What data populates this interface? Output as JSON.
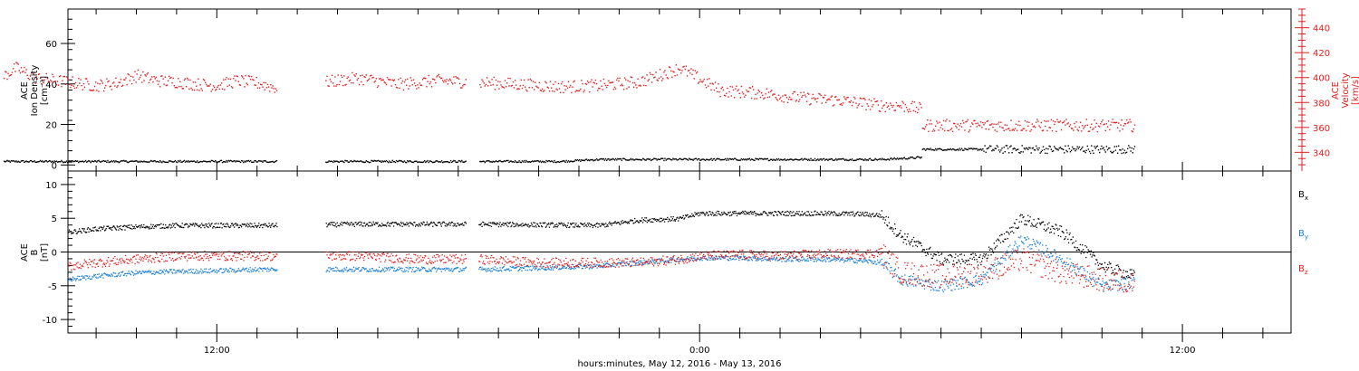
{
  "colors": {
    "black": "#000000",
    "red": "#e02020",
    "blue": "#1a7fd6"
  },
  "chart_data": [
    {
      "type": "scatter",
      "panel": "top",
      "ylabel_left": [
        "ACE",
        "Ion Density",
        "[cm⁻³]"
      ],
      "ylabel_right": [
        "ACE",
        "Velocity",
        "[km/s]"
      ],
      "ylim_left": [
        -3,
        77
      ],
      "ylim_right": [
        325,
        455
      ],
      "yticks_left": [
        0,
        20,
        40,
        60
      ],
      "yticks_right": [
        340,
        360,
        380,
        400,
        420,
        440
      ],
      "grid": false,
      "series": [
        {
          "color": "#000000",
          "axis": "left",
          "x": [
            6.7,
            7.5,
            8.5,
            9.5,
            10.5,
            11.5,
            12.5,
            13.5,
            15.5,
            16.5,
            17.5,
            19.5,
            20.5,
            21.5,
            22.5,
            23.5,
            0.5,
            1.5,
            2.5,
            3.5,
            4.5,
            5.5,
            6.5,
            7.5,
            8.5,
            9.5,
            9.8
          ],
          "y": [
            2,
            2,
            2,
            2,
            2,
            2,
            2,
            2,
            2,
            2,
            2,
            2,
            2,
            3,
            3,
            3,
            3,
            3,
            3,
            3,
            3,
            4,
            3,
            4,
            5,
            7,
            8
          ],
          "gaps": [
            [
              13.5,
              14.7
            ],
            [
              18.2,
              18.5
            ]
          ]
        },
        {
          "color": "#e02020",
          "axis": "right",
          "x": [
            6.7,
            7.0,
            7.5,
            8.0,
            8.5,
            9.0,
            9.5,
            10.0,
            10.5,
            11.0,
            11.5,
            12.0,
            12.5,
            13.0,
            13.5,
            15.5,
            16.5,
            17.5,
            19.5,
            20.5,
            21.5,
            22.5,
            23.5,
            0.5,
            1.5,
            2.5,
            3.5,
            4.5,
            5.0,
            5.5,
            6.5,
            7.5,
            8.5,
            9.5,
            9.8
          ],
          "y": [
            402,
            408,
            400,
            398,
            396,
            394,
            396,
            402,
            398,
            397,
            395,
            394,
            398,
            396,
            392,
            400,
            395,
            398,
            395,
            393,
            394,
            397,
            408,
            390,
            388,
            384,
            382,
            378,
            378,
            375,
            365,
            360,
            366,
            362,
            362
          ],
          "gaps": [
            [
              13.5,
              14.7
            ],
            [
              18.2,
              18.5
            ]
          ]
        }
      ]
    },
    {
      "type": "scatter",
      "panel": "bottom",
      "ylabel_left": [
        "ACE",
        "B",
        "[nT]"
      ],
      "ylim": [
        -12,
        12
      ],
      "yticks": [
        -10,
        -5,
        0,
        5,
        10
      ],
      "xlabel": "hours:minutes, May 12, 2016 - May 13, 2016",
      "xticks": [
        {
          "x": 12,
          "label": "12:00"
        },
        {
          "x": 24,
          "label": "0:00"
        },
        {
          "x": 36,
          "label": "12:00"
        }
      ],
      "xlim": [
        8.3,
        38.7
      ],
      "grid": false,
      "legend": [
        {
          "name": "B",
          "sub": "x",
          "color": "#000000"
        },
        {
          "name": "B",
          "sub": "y",
          "color": "#1a7fd6"
        },
        {
          "name": "B",
          "sub": "z",
          "color": "#e02020"
        }
      ],
      "series": [
        {
          "name": "Bx",
          "color": "#000000",
          "x": [
            8.3,
            9.0,
            10.0,
            11.0,
            12.0,
            13.0,
            13.5,
            15.5,
            17.0,
            18.5,
            20.0,
            21.5,
            22.5,
            23.5,
            24.0,
            25.0,
            26.0,
            27.0,
            28.0,
            28.5,
            29.0,
            30.0,
            31.0,
            32.0,
            33.0,
            34.0,
            34.8
          ],
          "y": [
            3,
            3.5,
            3.8,
            4,
            4,
            4,
            4,
            4.2,
            4.2,
            4.2,
            4.1,
            4,
            4.8,
            5,
            5.8,
            5.8,
            5.8,
            5.8,
            5.7,
            5.5,
            2.5,
            -1,
            -1,
            5,
            3,
            -2,
            -3.5
          ],
          "gaps": [
            [
              13.5,
              14.7
            ],
            [
              18.2,
              18.5
            ]
          ]
        },
        {
          "name": "By",
          "color": "#1a7fd6",
          "x": [
            8.3,
            9.0,
            10.0,
            11.0,
            12.0,
            13.0,
            13.5,
            15.5,
            17.0,
            18.5,
            20.0,
            21.5,
            22.5,
            23.5,
            24.0,
            25.0,
            26.0,
            27.0,
            28.0,
            28.5,
            29.0,
            30.0,
            31.0,
            32.0,
            33.0,
            34.0,
            34.8
          ],
          "y": [
            -4,
            -3.5,
            -3,
            -2.8,
            -2.7,
            -2.5,
            -2.5,
            -2.5,
            -2.5,
            -2.5,
            -2.3,
            -2,
            -1.5,
            -1,
            -0.8,
            -0.8,
            -1,
            -1,
            -1.2,
            -1.5,
            -4,
            -5,
            -4,
            2,
            -1,
            -5,
            -4.5
          ],
          "gaps": [
            [
              13.5,
              14.7
            ],
            [
              18.2,
              18.5
            ]
          ]
        },
        {
          "name": "Bz",
          "color": "#e02020",
          "x": [
            8.3,
            9.0,
            10.0,
            11.0,
            12.0,
            13.0,
            13.5,
            15.5,
            17.0,
            18.5,
            20.0,
            21.5,
            22.5,
            23.5,
            24.0,
            25.0,
            26.0,
            27.0,
            28.0,
            28.5,
            29.0,
            30.0,
            31.0,
            32.0,
            33.0,
            34.0,
            34.8
          ],
          "y": [
            -2,
            -1.5,
            -1,
            -0.5,
            -0.5,
            -0.5,
            -0.5,
            -0.5,
            -1,
            -1,
            -1.5,
            -1.5,
            -1.5,
            -1,
            -0.5,
            -0.3,
            -0.5,
            -0.2,
            -0.2,
            0,
            -3,
            -3.5,
            -3,
            -1,
            -3,
            -4,
            -4.5
          ],
          "gaps": [
            [
              13.5,
              14.7
            ],
            [
              18.2,
              18.5
            ]
          ]
        }
      ]
    }
  ]
}
